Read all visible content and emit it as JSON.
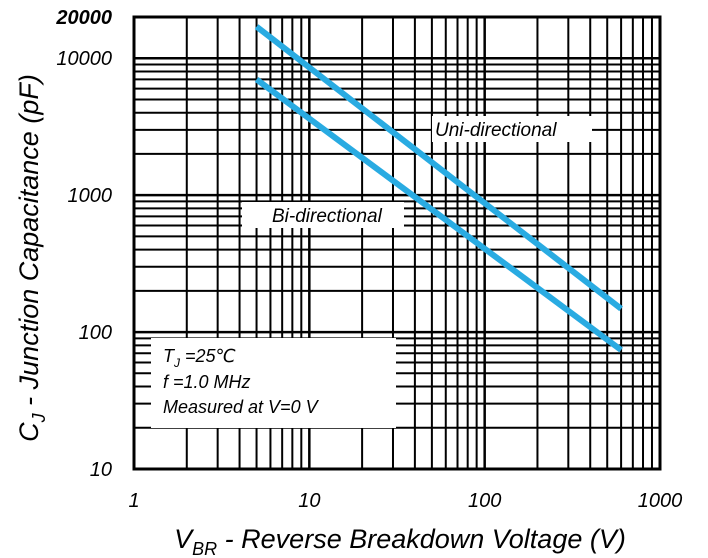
{
  "chart_data": {
    "type": "line",
    "title": "",
    "xlabel_main": "V",
    "xlabel_sub": "BR",
    "xlabel_rest": " - Reverse Breakdown Voltage (V)",
    "ylabel_main": "C",
    "ylabel_sub": "J",
    "ylabel_rest": " - Junction Capacitance (pF)",
    "x_scale": "log",
    "y_scale": "log",
    "xlim": [
      1,
      1000
    ],
    "ylim": [
      10,
      20000
    ],
    "x_ticks": [
      {
        "value": 1,
        "label": "1"
      },
      {
        "value": 10,
        "label": "10"
      },
      {
        "value": 100,
        "label": "100"
      },
      {
        "value": 1000,
        "label": "1000"
      }
    ],
    "y_ticks": [
      {
        "value": 10,
        "label": "10"
      },
      {
        "value": 100,
        "label": "100"
      },
      {
        "value": 1000,
        "label": "1000"
      },
      {
        "value": 10000,
        "label": "10000"
      },
      {
        "value": 20000,
        "label": "20000"
      }
    ],
    "grid": "on",
    "series": [
      {
        "name": "Uni-directional",
        "color": "#29abe2",
        "x": [
          5,
          600
        ],
        "y": [
          17000,
          148
        ]
      },
      {
        "name": "Bi-directional",
        "color": "#29abe2",
        "x": [
          5,
          600
        ],
        "y": [
          7000,
          74
        ]
      }
    ],
    "series_labels": [
      {
        "text": "Uni-directional",
        "series": 0
      },
      {
        "text": "Bi-directional",
        "series": 1
      }
    ],
    "annotation": {
      "tj_main": "T",
      "tj_sub": "J",
      "tj_rest": " =25℃",
      "line2": "f =1.0 MHz",
      "line3": "Measured at V=0 V"
    }
  }
}
